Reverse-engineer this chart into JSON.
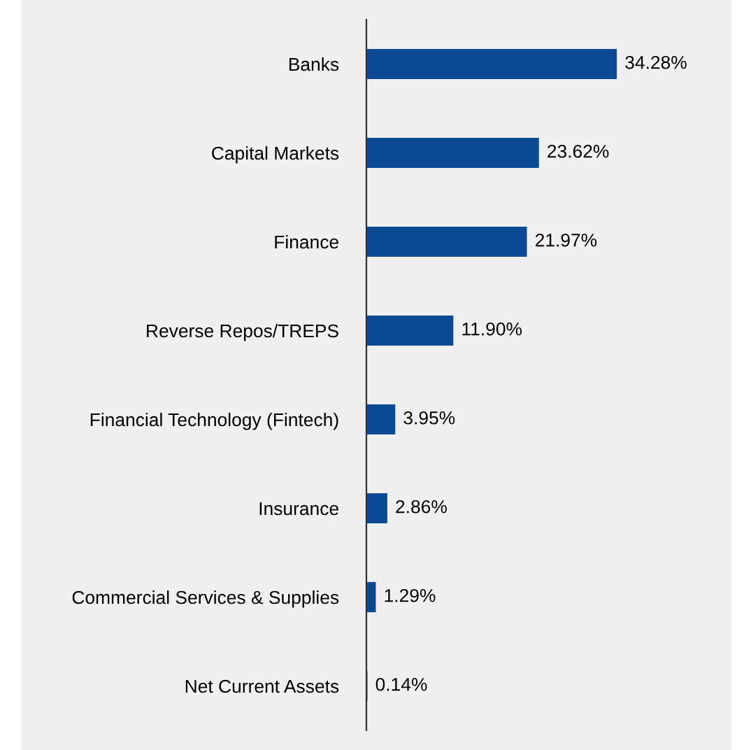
{
  "chart_data": {
    "type": "bar",
    "orientation": "horizontal",
    "categories": [
      "Banks",
      "Capital Markets",
      "Finance",
      "Reverse Repos/TREPS",
      "Financial Technology (Fintech)",
      "Insurance",
      "Commercial Services & Supplies",
      "Net Current Assets"
    ],
    "values": [
      34.28,
      23.62,
      21.97,
      11.9,
      3.95,
      2.86,
      1.29,
      0.14
    ],
    "value_labels": [
      "34.28%",
      "23.62%",
      "21.97%",
      "11.90%",
      "3.95%",
      "2.86%",
      "1.29%",
      "0.14%"
    ],
    "color": "#0b4a94",
    "grid": false,
    "legend": false
  }
}
